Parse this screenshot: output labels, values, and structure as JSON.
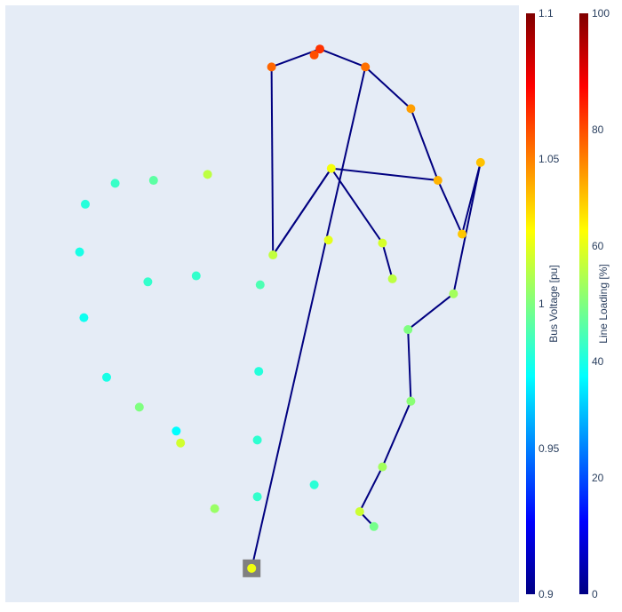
{
  "chart_data": {
    "type": "network",
    "plot_background": "#e5ecf6",
    "line_color": "#000080",
    "ext_grid_marker_color": "#808080",
    "buses": [
      {
        "id": 0,
        "x": 0.76,
        "y": 0.03,
        "voltage": 1.022
      },
      {
        "id": 1,
        "x": 0.63,
        "y": 0.13,
        "voltage": 1.005
      },
      {
        "id": 2,
        "x": 0.51,
        "y": 0.24,
        "voltage": 1.016
      },
      {
        "id": 3,
        "x": 0.365,
        "y": 0.3,
        "voltage": 1.0
      },
      {
        "id": 4,
        "x": 0.25,
        "y": 0.35,
        "voltage": 0.98
      },
      {
        "id": 5,
        "x": 0.17,
        "y": 0.45,
        "voltage": 0.978
      },
      {
        "id": 6,
        "x": 0.155,
        "y": 0.56,
        "voltage": 0.98
      },
      {
        "id": 7,
        "x": 0.175,
        "y": 0.64,
        "voltage": 0.982
      },
      {
        "id": 8,
        "x": 0.28,
        "y": 0.675,
        "voltage": 0.986
      },
      {
        "id": 9,
        "x": 0.415,
        "y": 0.68,
        "voltage": 0.993
      },
      {
        "id": 10,
        "x": 0.605,
        "y": 0.69,
        "voltage": 1.012
      },
      {
        "id": 11,
        "x": 0.83,
        "y": 0.87,
        "voltage": 1.055
      },
      {
        "id": 12,
        "x": 1.0,
        "y": 0.9,
        "voltage": 1.065
      },
      {
        "id": 13,
        "x": 1.16,
        "y": 0.87,
        "voltage": 1.053
      },
      {
        "id": 14,
        "x": 1.32,
        "y": 0.8,
        "voltage": 1.044
      },
      {
        "id": 15,
        "x": 1.415,
        "y": 0.68,
        "voltage": 1.04
      },
      {
        "id": 16,
        "x": 1.04,
        "y": 0.7,
        "voltage": 1.023
      },
      {
        "id": 17,
        "x": 0.835,
        "y": 0.555,
        "voltage": 1.013
      },
      {
        "id": 18,
        "x": 1.5,
        "y": 0.59,
        "voltage": 1.036
      },
      {
        "id": 19,
        "x": 1.565,
        "y": 0.71,
        "voltage": 1.037
      },
      {
        "id": 20,
        "x": 1.47,
        "y": 0.49,
        "voltage": 1.007
      },
      {
        "id": 21,
        "x": 1.31,
        "y": 0.43,
        "voltage": 1.0
      },
      {
        "id": 22,
        "x": 1.32,
        "y": 0.31,
        "voltage": 1.002
      },
      {
        "id": 23,
        "x": 1.22,
        "y": 0.2,
        "voltage": 1.007
      },
      {
        "id": 24,
        "x": 1.14,
        "y": 0.125,
        "voltage": 1.015
      },
      {
        "id": 25,
        "x": 1.19,
        "y": 0.1,
        "voltage": 0.998
      },
      {
        "id": 26,
        "x": 0.98,
        "y": 0.89,
        "voltage": 1.06
      },
      {
        "id": 27,
        "x": 1.255,
        "y": 0.515,
        "voltage": 1.012
      },
      {
        "id": 28,
        "x": 1.22,
        "y": 0.575,
        "voltage": 1.017
      },
      {
        "id": 29,
        "x": 0.79,
        "y": 0.505,
        "voltage": 0.99
      },
      {
        "id": 30,
        "x": 0.565,
        "y": 0.52,
        "voltage": 0.985
      },
      {
        "id": 31,
        "x": 0.395,
        "y": 0.51,
        "voltage": 0.985
      },
      {
        "id": 32,
        "x": 0.785,
        "y": 0.36,
        "voltage": 0.982
      },
      {
        "id": 33,
        "x": 0.78,
        "y": 0.245,
        "voltage": 0.984
      },
      {
        "id": 34,
        "x": 0.78,
        "y": 0.15,
        "voltage": 0.985
      },
      {
        "id": 35,
        "x": 1.03,
        "y": 0.58,
        "voltage": 1.02
      },
      {
        "id": 36,
        "x": 0.495,
        "y": 0.26,
        "voltage": 0.975
      },
      {
        "id": 37,
        "x": 0.98,
        "y": 0.17,
        "voltage": 0.983
      }
    ],
    "lines": [
      [
        0,
        13
      ],
      [
        13,
        14
      ],
      [
        14,
        15
      ],
      [
        15,
        16
      ],
      [
        16,
        17
      ],
      [
        17,
        11
      ],
      [
        11,
        12
      ],
      [
        12,
        13
      ],
      [
        15,
        18
      ],
      [
        18,
        19
      ],
      [
        19,
        20
      ],
      [
        20,
        21
      ],
      [
        21,
        22
      ],
      [
        22,
        23
      ],
      [
        23,
        24
      ],
      [
        24,
        25
      ],
      [
        26,
        12
      ],
      [
        27,
        28
      ],
      [
        28,
        16
      ],
      [
        16,
        17
      ]
    ],
    "line_loading": [],
    "ext_grid_bus": 0,
    "colorbars": [
      {
        "title": "Bus Voltage [pu]",
        "range": [
          0.9,
          1.1
        ],
        "ticks": [
          "0.9",
          "0.95",
          "1",
          "1.05",
          "1.1"
        ],
        "colorscale": "jet"
      },
      {
        "title": "Line Loading [%]",
        "range": [
          0,
          100
        ],
        "ticks": [
          "0",
          "20",
          "40",
          "60",
          "80",
          "100"
        ],
        "colorscale": "jet"
      }
    ]
  }
}
